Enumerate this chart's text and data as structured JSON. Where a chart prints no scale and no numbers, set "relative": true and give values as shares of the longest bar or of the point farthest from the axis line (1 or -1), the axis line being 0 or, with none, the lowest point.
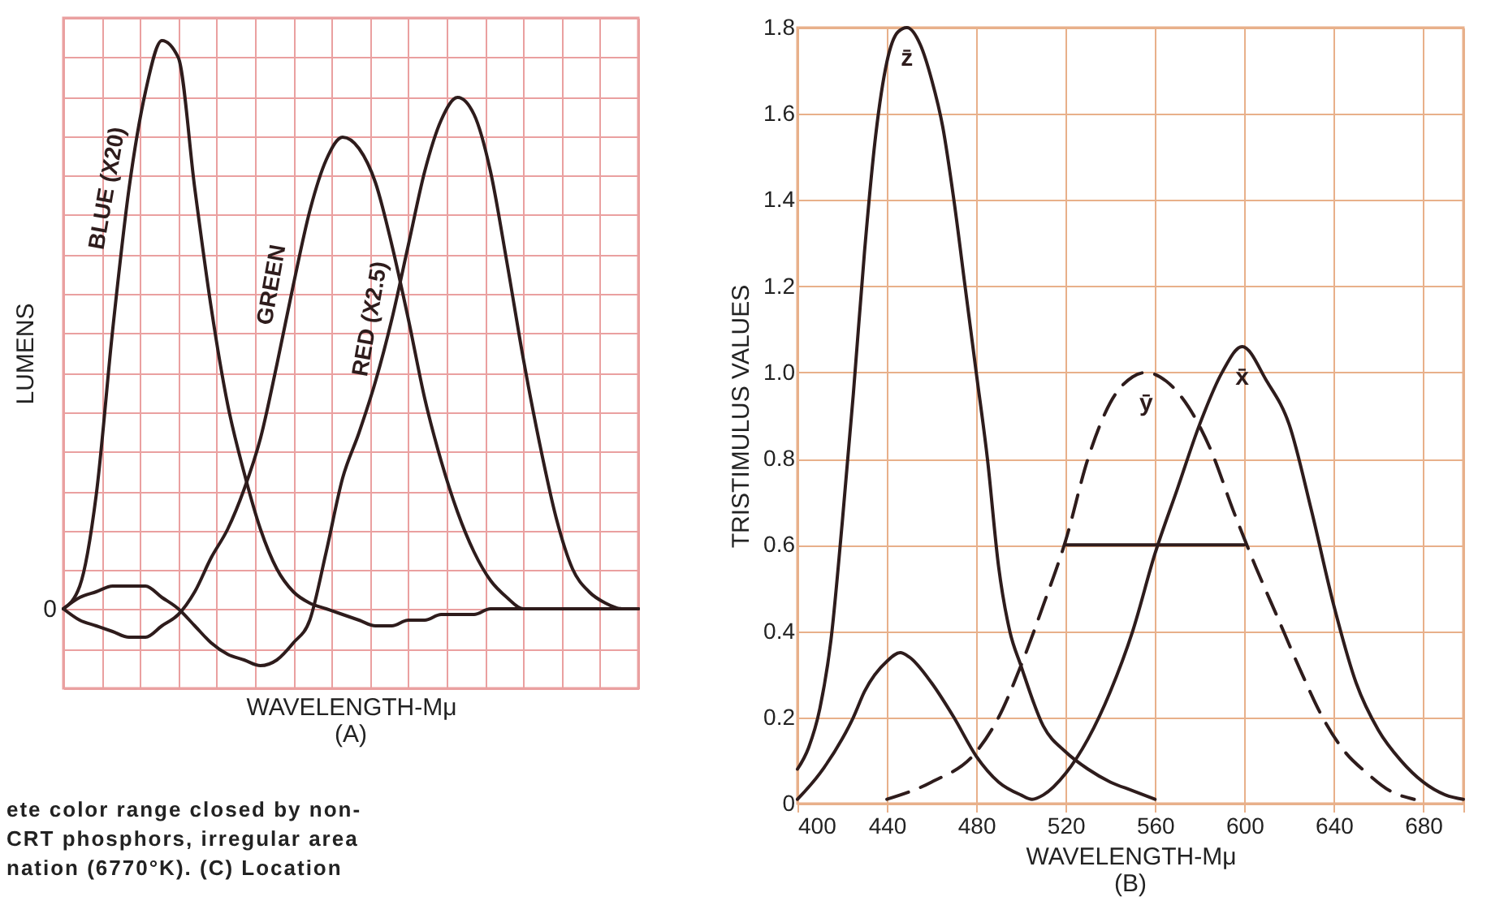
{
  "chart_data": [
    {
      "type": "line",
      "relative": true,
      "ylabel": "LUMENS",
      "xlabel": "WAVELENGTH-Mμ",
      "subtitle": "(A)",
      "grid": true,
      "categories": [
        null,
        null,
        null,
        null,
        null,
        null,
        null,
        null,
        null,
        null,
        null,
        null,
        null,
        null,
        null,
        null,
        null,
        null,
        null,
        null,
        null,
        null,
        null,
        null,
        null,
        null,
        null,
        null,
        null,
        null,
        null,
        null,
        null,
        null,
        null,
        null
      ],
      "series": [
        {
          "name": "BLUE (X20)",
          "color": "#2e1c1c",
          "values": [
            0,
            0.04,
            0.2,
            0.49,
            0.74,
            0.91,
            1.0,
            0.97,
            0.74,
            0.53,
            0.36,
            0.24,
            0.14,
            0.07,
            0.03,
            0.01,
            0,
            -0.01,
            -0.02,
            -0.03,
            -0.03,
            -0.02,
            -0.02,
            -0.01,
            -0.01,
            -0.01,
            0,
            0,
            0,
            0,
            0,
            0,
            0,
            0,
            0,
            0
          ]
        },
        {
          "name": "GREEN",
          "color": "#2e1c1c",
          "values": [
            0,
            -0.02,
            -0.03,
            -0.04,
            -0.05,
            -0.05,
            -0.03,
            -0.01,
            0.03,
            0.09,
            0.14,
            0.21,
            0.3,
            0.43,
            0.57,
            0.7,
            0.79,
            0.83,
            0.81,
            0.75,
            0.64,
            0.51,
            0.37,
            0.26,
            0.17,
            0.1,
            0.05,
            0.02,
            0,
            0,
            0,
            0,
            0,
            0,
            0,
            0
          ]
        },
        {
          "name": "RED (X2.5)",
          "color": "#2e1c1c",
          "values": [
            0,
            0.02,
            0.03,
            0.04,
            0.04,
            0.04,
            0.02,
            0,
            -0.03,
            -0.06,
            -0.08,
            -0.09,
            -0.1,
            -0.09,
            -0.06,
            -0.02,
            0.1,
            0.23,
            0.31,
            0.4,
            0.51,
            0.64,
            0.77,
            0.86,
            0.9,
            0.87,
            0.77,
            0.61,
            0.44,
            0.29,
            0.16,
            0.07,
            0.03,
            0.01,
            0,
            0
          ]
        }
      ],
      "annotations": [
        "0",
        "ete color range closed by non-",
        "CRT phosphors, irregular area",
        "nation (6770°K). (C) Location"
      ]
    },
    {
      "type": "line",
      "ylabel": "TRISTIMULUS VALUES",
      "xlabel": "WAVELENGTH-Mμ",
      "subtitle": "(B)",
      "grid": true,
      "xlim": [
        400,
        698
      ],
      "xticks": [
        400,
        440,
        480,
        520,
        560,
        600,
        640,
        680
      ],
      "ylim": [
        0,
        1.8
      ],
      "yticks": [
        0,
        0.2,
        0.4,
        0.6,
        0.8,
        {
          "value": 1,
          "label": "1.0"
        },
        1.2,
        1.4,
        1.6,
        1.8
      ],
      "series": [
        {
          "name": "z̄",
          "color": "#2e1c1c",
          "x": [
            400,
            405,
            410,
            415,
            420,
            425,
            430,
            435,
            440,
            445,
            449,
            455,
            460,
            465,
            470,
            475,
            480,
            485,
            490,
            495,
            500,
            510,
            520,
            530,
            540,
            550,
            560
          ],
          "values": [
            0.08,
            0.13,
            0.22,
            0.38,
            0.65,
            0.95,
            1.28,
            1.55,
            1.72,
            1.79,
            1.8,
            1.76,
            1.68,
            1.57,
            1.4,
            1.2,
            1.0,
            0.8,
            0.55,
            0.4,
            0.32,
            0.18,
            0.12,
            0.08,
            0.05,
            0.03,
            0.01
          ]
        },
        {
          "name": "ȳ",
          "color": "#2e1c1c",
          "line_style": "dashed",
          "x": [
            440,
            460,
            480,
            490,
            500,
            510,
            520,
            530,
            540,
            550,
            556,
            565,
            575,
            585,
            595,
            605,
            615,
            625,
            635,
            645,
            655,
            665,
            676
          ],
          "values": [
            0.01,
            0.05,
            0.12,
            0.2,
            0.32,
            0.46,
            0.61,
            0.8,
            0.93,
            0.99,
            1.0,
            0.98,
            0.92,
            0.82,
            0.68,
            0.55,
            0.43,
            0.31,
            0.2,
            0.12,
            0.07,
            0.03,
            0.01
          ]
        },
        {
          "name": "x̄",
          "color": "#2e1c1c",
          "x": [
            400,
            410,
            420,
            425,
            430,
            440,
            446,
            450,
            460,
            470,
            480,
            490,
            500,
            505,
            510,
            520,
            530,
            540,
            550,
            560,
            570,
            580,
            590,
            599,
            610,
            620,
            630,
            640,
            650,
            660,
            670,
            680,
            690,
            698
          ],
          "values": [
            0.01,
            0.07,
            0.15,
            0.2,
            0.26,
            0.33,
            0.35,
            0.34,
            0.28,
            0.2,
            0.11,
            0.05,
            0.02,
            0.01,
            0.02,
            0.07,
            0.15,
            0.26,
            0.4,
            0.58,
            0.73,
            0.88,
            1.0,
            1.06,
            0.98,
            0.88,
            0.68,
            0.46,
            0.28,
            0.17,
            0.1,
            0.05,
            0.02,
            0.01
          ]
        },
        {
          "type": "line",
          "color": "#2e1c1c",
          "x": [
            520,
            600
          ],
          "values": [
            0.6,
            0.6
          ]
        }
      ]
    }
  ]
}
